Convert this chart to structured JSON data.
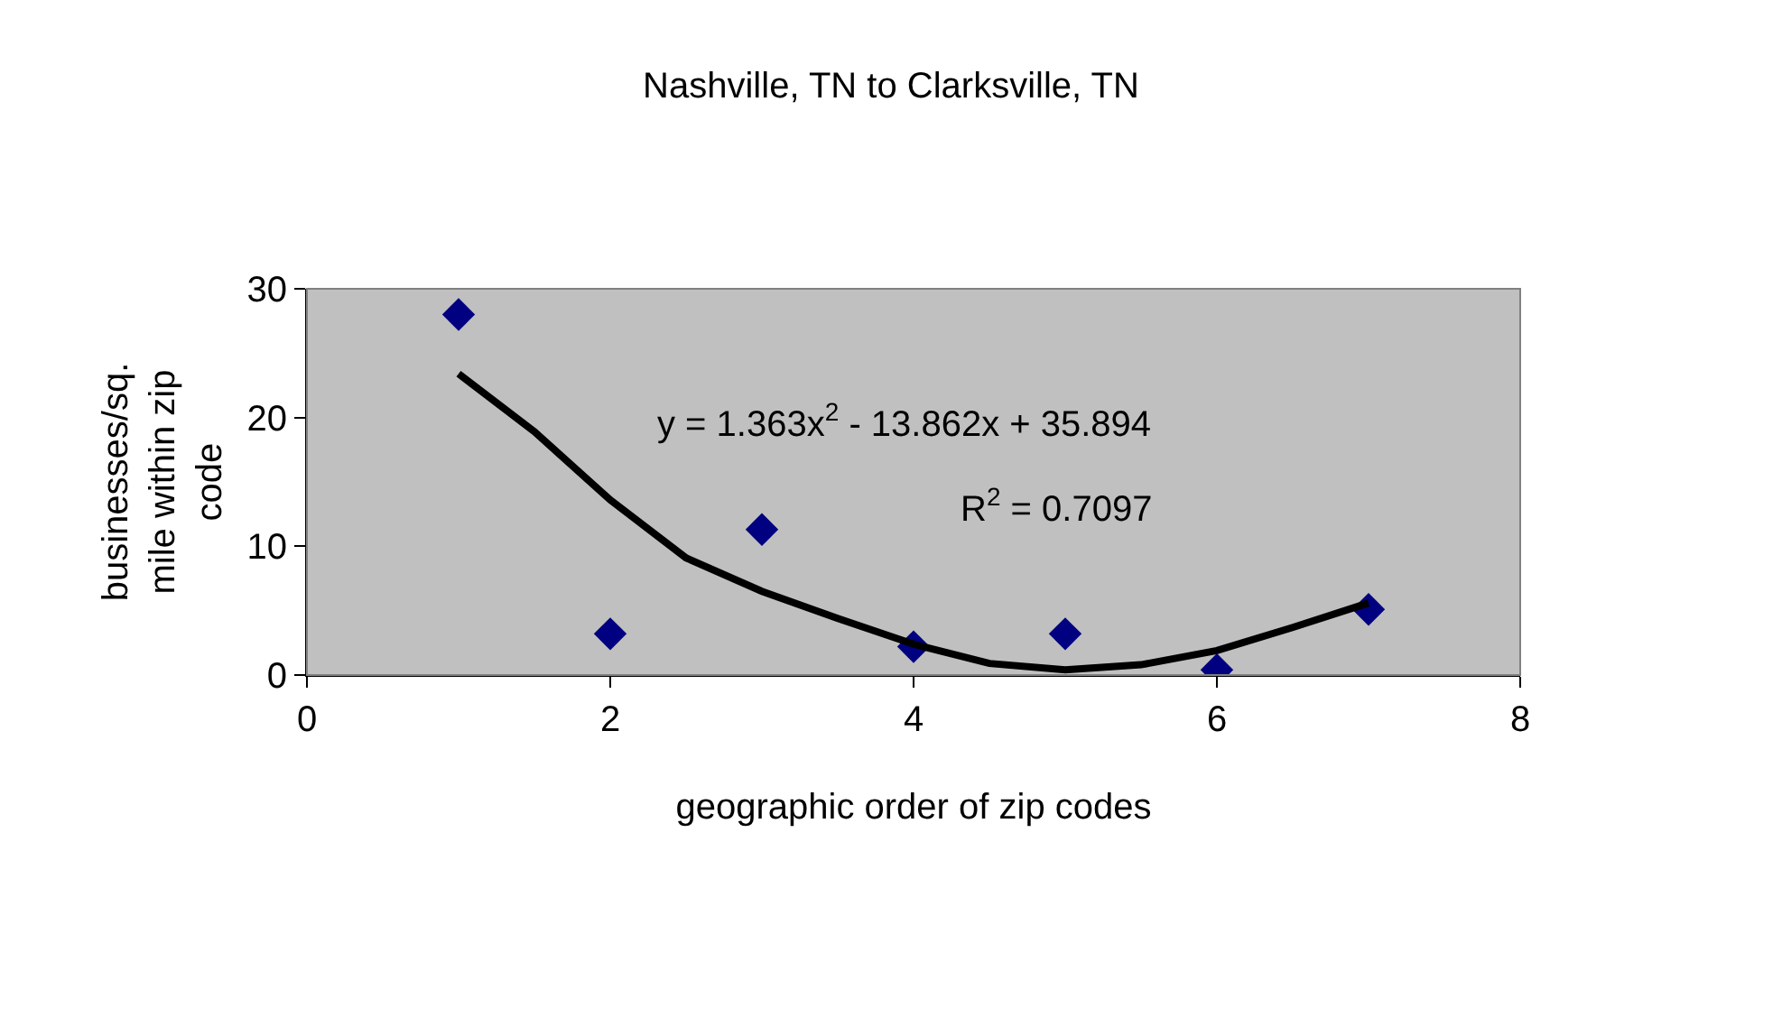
{
  "chart_data": {
    "type": "scatter",
    "title": "Nashville, TN to Clarksville, TN",
    "xlabel": "geographic order of zip codes",
    "ylabel": "businesses/sq. mile within zip code",
    "xlim": [
      0,
      8
    ],
    "xticks": [
      0,
      2,
      4,
      6,
      8
    ],
    "ylim": [
      0,
      30
    ],
    "yticks": [
      0,
      10,
      20,
      30
    ],
    "grid": false,
    "marker": "diamond",
    "series": [
      {
        "color": "#000080",
        "x": [
          1,
          2,
          3,
          4,
          5,
          6,
          7
        ],
        "values": [
          28.0,
          3.2,
          11.3,
          2.2,
          3.2,
          0.4,
          5.1
        ]
      },
      {
        "type": "line",
        "color": "#000000",
        "marker": "none",
        "line_style": "solid",
        "x": [
          1,
          1.5,
          2,
          2.5,
          3,
          3.5,
          4,
          4.5,
          5,
          5.5,
          6,
          6.5,
          7
        ],
        "values": [
          23.4,
          18.9,
          13.6,
          9.1,
          6.5,
          4.4,
          2.4,
          0.9,
          0.4,
          0.8,
          1.9,
          3.7,
          5.6
        ]
      }
    ],
    "annotations": [
      "y = 1.363x$^{2}$ - 13.862x + 35.894",
      "R$^{2}$ = 0.7097"
    ]
  }
}
